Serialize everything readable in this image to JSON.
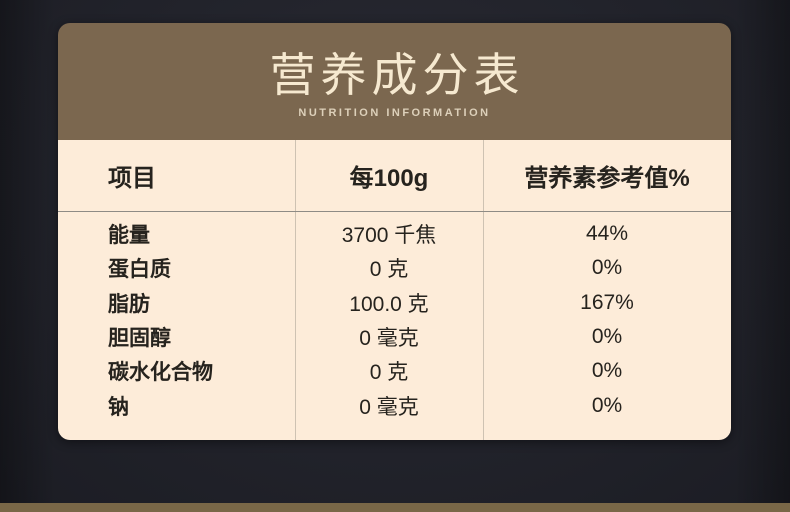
{
  "header": {
    "title": "营养成分表",
    "subtitle": "NUTRITION INFORMATION"
  },
  "table": {
    "columns": [
      "项目",
      "每100g",
      "营养素参考值%"
    ],
    "rows": [
      {
        "item": "能量",
        "per100g": "3700 千焦",
        "nrv": "44%"
      },
      {
        "item": "蛋白质",
        "per100g": "0 克",
        "nrv": "0%"
      },
      {
        "item": "脂肪",
        "per100g": "100.0 克",
        "nrv": "167%"
      },
      {
        "item": "胆固醇",
        "per100g": "0 毫克",
        "nrv": "0%"
      },
      {
        "item": "碳水化合物",
        "per100g": "0 克",
        "nrv": "0%"
      },
      {
        "item": "钠",
        "per100g": "0 毫克",
        "nrv": "0%"
      }
    ]
  },
  "colors": {
    "page_bg": "#23242c",
    "header_bg": "#7b674f",
    "table_bg": "#fdecd9",
    "title_text": "#f6e9d0",
    "subtitle_text": "#ddd0ba",
    "table_text": "#26231e",
    "header_rule": "#8e8b85",
    "column_rule": "#cec2b2",
    "bottom_strip": "#796747"
  }
}
